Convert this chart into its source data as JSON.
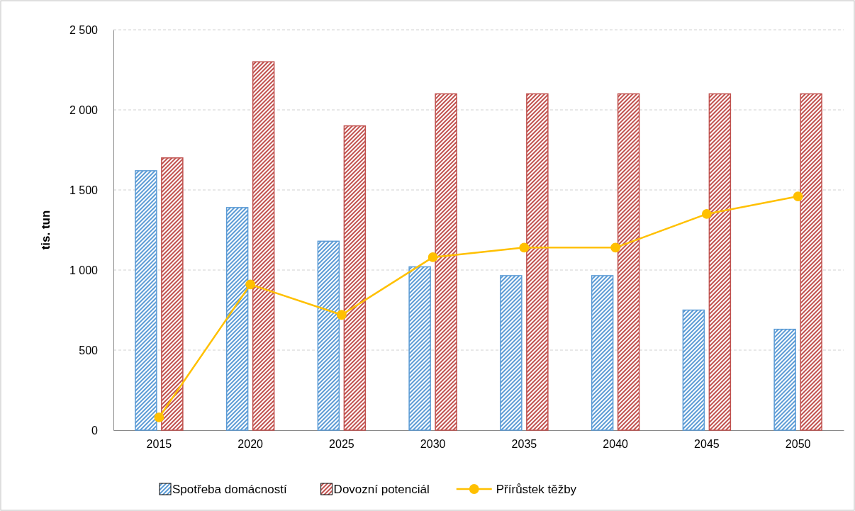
{
  "chart_data": {
    "type": "bar",
    "ylabel": "tis. tun",
    "categories": [
      "2015",
      "2020",
      "2025",
      "2030",
      "2035",
      "2040",
      "2045",
      "2050"
    ],
    "series": [
      {
        "name": "Spotřeba domácností",
        "color": "#5b9bd5",
        "values": [
          1620,
          1390,
          1180,
          1020,
          965,
          965,
          750,
          630
        ]
      },
      {
        "name": "Dovozní potenciál",
        "color": "#c0504d",
        "values": [
          1700,
          2300,
          1900,
          2100,
          2100,
          2100,
          2100,
          2100
        ]
      },
      {
        "name": "Přírůstek těžby",
        "type": "line",
        "color": "#ffc000",
        "values": [
          80,
          910,
          720,
          1080,
          1140,
          1140,
          1350,
          1460
        ]
      }
    ],
    "ylim": [
      0,
      2500
    ],
    "yticks": [
      0,
      500,
      {
        "value": 1000,
        "label": "1 000"
      },
      {
        "value": 1500,
        "label": "1 500"
      },
      {
        "value": 2000,
        "label": "2 000"
      },
      {
        "value": 2500,
        "label": "2 500"
      }
    ],
    "grid": "y",
    "legend": "bottom",
    "marker": "circle",
    "line_style": "solid"
  }
}
